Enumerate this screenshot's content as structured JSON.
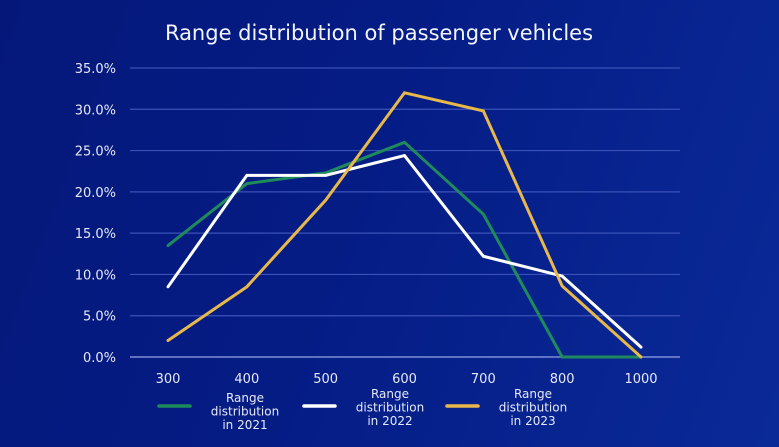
{
  "chart_data": {
    "type": "line",
    "title": "Range distribution of passenger vehicles",
    "xlabel": "",
    "ylabel": "",
    "categories": [
      "300",
      "400",
      "500",
      "600",
      "700",
      "800",
      "1000"
    ],
    "ylim": [
      0,
      35
    ],
    "yticks": [
      "0.0%",
      "5.0%",
      "10.0%",
      "15.0%",
      "20.0%",
      "25.0%",
      "30.0%",
      "35.0%"
    ],
    "ytick_values": [
      0,
      5,
      10,
      15,
      20,
      25,
      30,
      35
    ],
    "grid": true,
    "legend_position": "bottom",
    "series": [
      {
        "name": "Range distribution in 2021",
        "legend_lines": [
          "Range",
          "distribution",
          "in 2021"
        ],
        "color": "#1f8a5b",
        "values": [
          13.5,
          21.0,
          22.3,
          26.0,
          17.3,
          0.0,
          0.0
        ]
      },
      {
        "name": "Range distribution in 2022",
        "legend_lines": [
          "Range",
          "distribution",
          "in 2022"
        ],
        "color": "#ffffff",
        "values": [
          8.5,
          22.0,
          22.0,
          24.4,
          12.2,
          9.8,
          1.2
        ]
      },
      {
        "name": "Range distribution in 2023",
        "legend_lines": [
          "Range",
          "distribution",
          "in 2023"
        ],
        "color": "#e8b84a",
        "values": [
          2.0,
          8.5,
          19.0,
          32.0,
          29.8,
          8.6,
          0.0
        ]
      }
    ]
  }
}
